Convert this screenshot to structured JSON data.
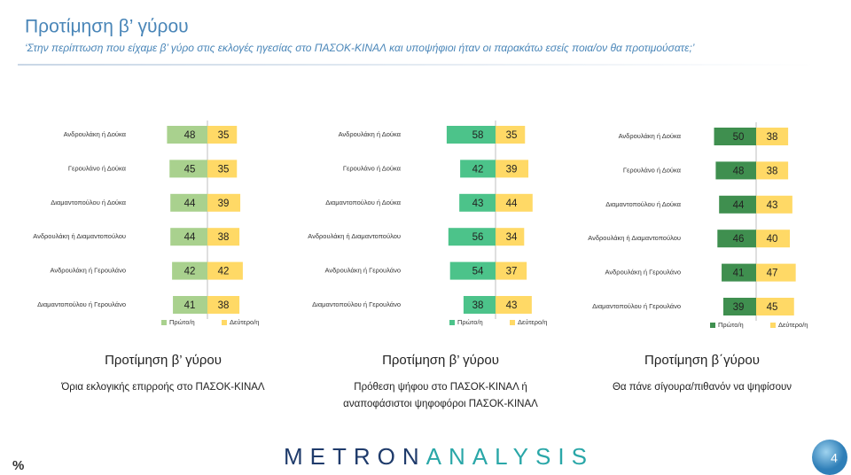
{
  "title": "Προτίμηση β’ γύρου",
  "subtitle": "‘Στην περίπτωση που είχαμε β’ γύρο στις εκλογές ηγεσίας στο ΠΑΣΟΚ-ΚΙΝΑΛ και υποψήφιοι ήταν οι παρακάτω εσείς ποια/ον θα προτιμούσατε;’",
  "unit_note": "%",
  "logo": [
    "METRON",
    "ANALYSIS"
  ],
  "page_number": "4",
  "chart_data": [
    {
      "type": "diverging-bar",
      "title": "Προτίμηση β’ γύρου",
      "caption": "Όρια εκλογικής επιρροής στο ΠΑΣΟΚ-ΚΙΝΑΛ",
      "categories": [
        "Ανδρουλάκη ή Δούκα",
        "Γερουλάνο ή Δούκα",
        "Διαμαντοπούλου ή Δούκα",
        "Ανδρουλάκη ή Διαμαντοπούλου",
        "Ανδρουλάκη ή Γερουλάνο",
        "Διαμαντοπούλου ή Γερουλάνο"
      ],
      "series": [
        {
          "name": "Πρώτο/η",
          "color": "#a9d18e",
          "values": [
            48,
            45,
            44,
            44,
            42,
            41
          ]
        },
        {
          "name": "Δεύτερο/η",
          "color": "#ffd966",
          "values": [
            35,
            35,
            39,
            38,
            42,
            38
          ]
        }
      ]
    },
    {
      "type": "diverging-bar",
      "title": "Προτίμηση β’ γύρου",
      "caption": "Πρόθεση ψήφου στο ΠΑΣΟΚ-ΚΙΝΑΛ ή αναποφάσιστοι ψηφοφόροι ΠΑΣΟΚ-ΚΙΝΑΛ",
      "categories": [
        "Ανδρουλάκη ή Δούκα",
        "Γερουλάνο ή Δούκα",
        "Διαμαντοπούλου ή Δούκα",
        "Ανδρουλάκη ή Διαμαντοπούλου",
        "Ανδρουλάκη ή Γερουλάνο",
        "Διαμαντοπούλου ή Γερουλάνο"
      ],
      "series": [
        {
          "name": "Πρώτο/η",
          "color": "#4cc38a",
          "values": [
            58,
            42,
            43,
            56,
            54,
            38
          ]
        },
        {
          "name": "Δεύτερο/η",
          "color": "#ffd966",
          "values": [
            35,
            39,
            44,
            34,
            37,
            43
          ]
        }
      ]
    },
    {
      "type": "diverging-bar",
      "title": "Προτίμηση β΄γύρου",
      "caption": "Θα πάνε σίγουρα/πιθανόν να ψηφίσουν",
      "categories": [
        "Ανδρουλάκη ή Δούκα",
        "Γερουλάνο ή Δούκα",
        "Διαμαντοπούλου ή Δούκα",
        "Ανδρουλάκη ή Διαμαντοπούλου",
        "Ανδρουλάκη ή Γερουλάνο",
        "Διαμαντοπούλου ή Γερουλάνο"
      ],
      "series": [
        {
          "name": "Πρώτο/η",
          "color": "#3f8f4f",
          "values": [
            50,
            48,
            44,
            46,
            41,
            39
          ]
        },
        {
          "name": "Δεύτερο/η",
          "color": "#ffd966",
          "values": [
            38,
            38,
            43,
            40,
            47,
            45
          ]
        }
      ]
    }
  ]
}
